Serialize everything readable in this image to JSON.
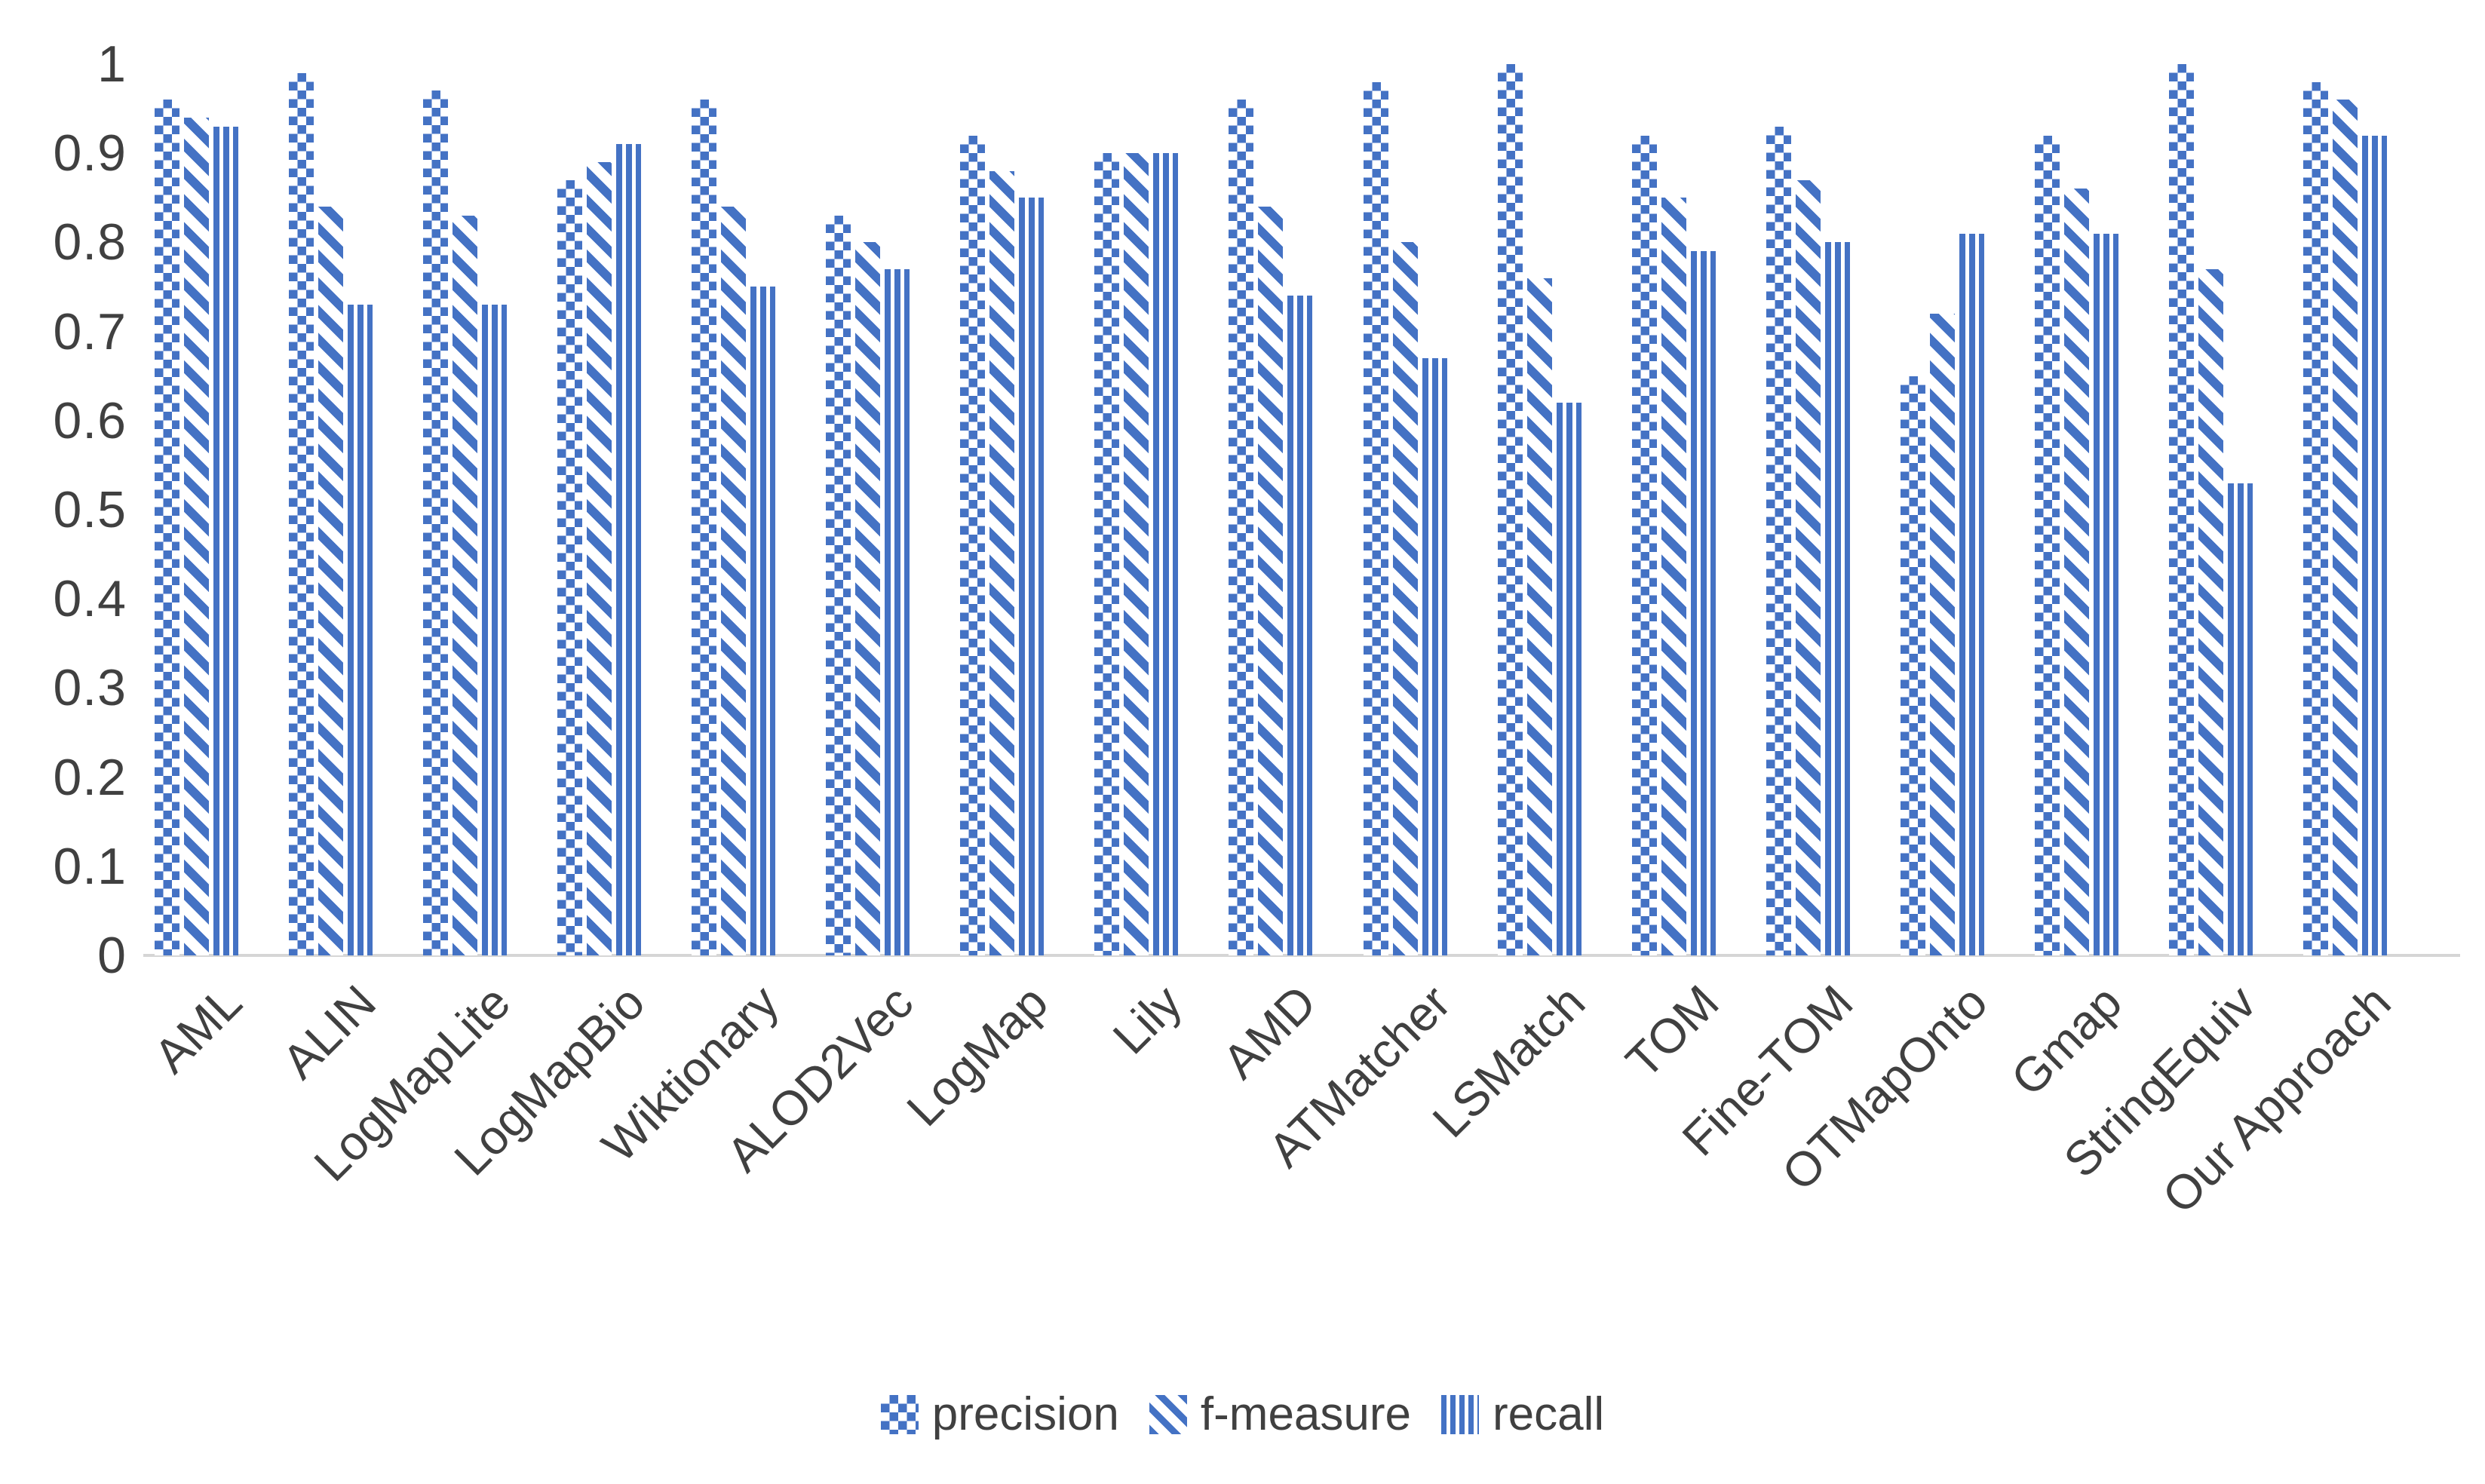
{
  "chart_data": {
    "type": "bar",
    "title": "",
    "xlabel": "",
    "ylabel": "",
    "ylim": [
      0,
      1
    ],
    "grid": false,
    "legend_position": "bottom",
    "colors": {
      "bar_blue": "#4472C4",
      "axis_line": "#d6d6d6",
      "tick_text": "#404040"
    },
    "yticks": [
      {
        "label": "1",
        "value": 1.0
      },
      {
        "label": "0.9",
        "value": 0.9
      },
      {
        "label": "0.8",
        "value": 0.8
      },
      {
        "label": "0.7",
        "value": 0.7
      },
      {
        "label": "0.6",
        "value": 0.6
      },
      {
        "label": "0.5",
        "value": 0.5
      },
      {
        "label": "0.4",
        "value": 0.4
      },
      {
        "label": "0.3",
        "value": 0.3
      },
      {
        "label": "0.2",
        "value": 0.2
      },
      {
        "label": "0.1",
        "value": 0.1
      },
      {
        "label": "0",
        "value": 0.0
      }
    ],
    "categories": [
      "AML",
      "ALIN",
      "LogMapLite",
      "LogMapBio",
      "Wiktionary",
      "ALOD2Vec",
      "LogMap",
      "Lily",
      "AMD",
      "ATMatcher",
      "LSMatch",
      "TOM",
      "Fine-TOM",
      "OTMapOnto",
      "Gmap",
      "StringEquiv",
      "Our Approach"
    ],
    "series": [
      {
        "name": "precision",
        "pattern": "checker",
        "values": [
          0.96,
          0.99,
          0.97,
          0.87,
          0.96,
          0.83,
          0.92,
          0.9,
          0.96,
          0.98,
          1.0,
          0.92,
          0.93,
          0.65,
          0.92,
          1.0,
          0.98
        ]
      },
      {
        "name": "f-measure",
        "pattern": "diag",
        "values": [
          0.94,
          0.84,
          0.83,
          0.89,
          0.84,
          0.8,
          0.88,
          0.9,
          0.84,
          0.8,
          0.76,
          0.85,
          0.87,
          0.72,
          0.86,
          0.77,
          0.96
        ]
      },
      {
        "name": "recall",
        "pattern": "vert",
        "values": [
          0.93,
          0.73,
          0.73,
          0.91,
          0.75,
          0.77,
          0.85,
          0.9,
          0.74,
          0.67,
          0.62,
          0.79,
          0.8,
          0.81,
          0.81,
          0.53,
          0.92
        ]
      }
    ]
  }
}
